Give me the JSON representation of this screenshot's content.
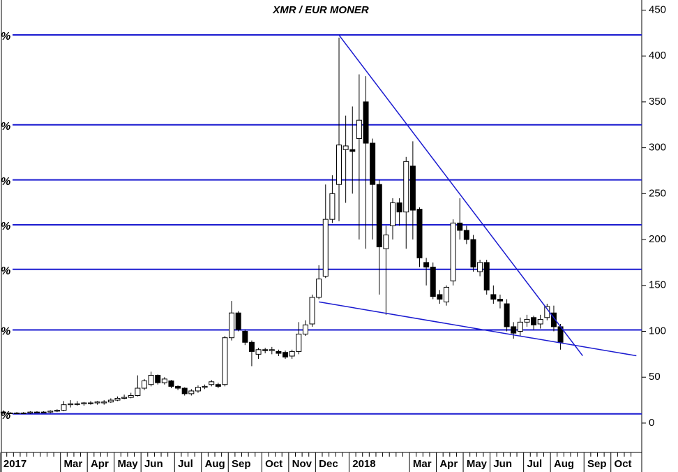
{
  "chart_data": {
    "type": "candlestick",
    "title": "XMR / EUR MONER",
    "categories": [
      "2017",
      null,
      null,
      null,
      null,
      null,
      null,
      null,
      null,
      "Mar",
      null,
      null,
      null,
      "Apr",
      null,
      null,
      null,
      "May",
      null,
      null,
      null,
      "Jun",
      null,
      null,
      null,
      null,
      "Jul",
      null,
      null,
      null,
      "Aug",
      null,
      null,
      null,
      "Sep",
      null,
      null,
      null,
      null,
      "Oct",
      null,
      null,
      null,
      "Nov",
      null,
      null,
      null,
      "Dec",
      null,
      null,
      null,
      null,
      "2018",
      null,
      null,
      null,
      null,
      null,
      null,
      null,
      null,
      "Mar",
      null,
      null,
      null,
      "Apr",
      null,
      null,
      null,
      "May",
      null,
      null,
      null,
      "Jun",
      null,
      null,
      null,
      null,
      "Jul",
      null,
      null,
      null,
      "Aug",
      null,
      null,
      null,
      null,
      "Sep",
      null,
      null,
      null,
      "Oct",
      null,
      null,
      null
    ],
    "open": [
      12,
      11,
      11,
      11,
      11,
      12,
      12,
      12,
      13,
      14,
      20,
      21,
      21,
      22,
      22,
      22,
      23,
      25,
      27,
      28,
      30,
      38,
      42,
      52,
      44,
      46,
      40,
      38,
      32,
      35,
      39,
      42,
      42,
      42,
      93,
      120,
      100,
      88,
      75,
      80,
      79,
      78,
      77,
      73,
      78,
      97,
      108,
      137,
      160,
      222,
      260,
      298,
      298,
      310,
      350,
      305,
      260,
      190,
      215,
      240,
      230,
      280,
      233,
      175,
      170,
      140,
      132,
      155,
      218,
      210,
      200,
      165,
      175,
      140,
      135,
      130,
      105,
      100,
      110,
      115,
      108,
      115,
      120,
      105,
      null,
      null,
      null,
      null,
      null,
      null,
      null,
      null,
      null,
      null,
      null
    ],
    "high": [
      14,
      12,
      12,
      12,
      13,
      13,
      13,
      14,
      15,
      24,
      25,
      24,
      23,
      24,
      24,
      25,
      27,
      29,
      31,
      33,
      52,
      48,
      56,
      53,
      50,
      47,
      41,
      39,
      37,
      41,
      42,
      47,
      44,
      95,
      133,
      122,
      102,
      90,
      82,
      82,
      83,
      80,
      79,
      80,
      110,
      112,
      140,
      172,
      260,
      270,
      420,
      335,
      345,
      380,
      378,
      310,
      265,
      215,
      245,
      245,
      290,
      307,
      235,
      180,
      175,
      145,
      150,
      222,
      245,
      215,
      205,
      178,
      178,
      150,
      140,
      135,
      110,
      115,
      118,
      117,
      118,
      130,
      128,
      108,
      null,
      null,
      null,
      null,
      null,
      null,
      null,
      null,
      null,
      null,
      null
    ],
    "low": [
      10,
      10,
      10,
      10,
      10,
      11,
      11,
      11,
      12,
      13,
      17,
      19,
      19,
      20,
      20,
      20,
      22,
      24,
      26,
      27,
      29,
      36,
      40,
      42,
      42,
      38,
      36,
      30,
      30,
      33,
      37,
      40,
      38,
      40,
      90,
      100,
      85,
      62,
      70,
      76,
      75,
      73,
      70,
      70,
      75,
      95,
      105,
      135,
      158,
      218,
      220,
      240,
      250,
      200,
      190,
      200,
      140,
      118,
      200,
      215,
      190,
      200,
      170,
      150,
      135,
      130,
      128,
      150,
      200,
      195,
      165,
      160,
      140,
      130,
      125,
      100,
      92,
      95,
      105,
      102,
      103,
      112,
      100,
      80,
      null,
      null,
      null,
      null,
      null,
      null,
      null,
      null,
      null,
      null,
      null
    ],
    "close": [
      11,
      11,
      11,
      11,
      12,
      12,
      12,
      13,
      14,
      20,
      21,
      21,
      22,
      22,
      23,
      23,
      25,
      27,
      28,
      30,
      38,
      46,
      52,
      44,
      48,
      40,
      38,
      32,
      35,
      39,
      40,
      45,
      40,
      93,
      120,
      102,
      88,
      78,
      80,
      79,
      80,
      76,
      72,
      78,
      97,
      107,
      137,
      157,
      222,
      250,
      303,
      302,
      296,
      330,
      305,
      260,
      192,
      205,
      240,
      230,
      285,
      232,
      180,
      170,
      138,
      135,
      148,
      218,
      210,
      200,
      170,
      175,
      145,
      135,
      133,
      105,
      98,
      110,
      113,
      107,
      113,
      127,
      105,
      88,
      null,
      null,
      null,
      null,
      null,
      null,
      null,
      null,
      null,
      null,
      null
    ],
    "up_color": "#ffffff",
    "down_color": "#000000",
    "xlim": [
      -0.3,
      95.1
    ],
    "ylim": [
      -32,
      461
    ],
    "yticks": [
      0,
      50,
      100,
      150,
      200,
      250,
      300,
      350,
      400,
      450
    ],
    "hlines": [
      423,
      325,
      265,
      216,
      167.5,
      101.5,
      10
    ],
    "hline_labels": [
      "%",
      "%",
      "%",
      "%",
      "%",
      "%",
      "%"
    ],
    "line_color": "#1a1ad0",
    "trendlines": [
      {
        "x": [
          50,
          86.3
        ],
        "y": [
          422.7,
          73.4
        ]
      },
      {
        "x": [
          47,
          94.3
        ],
        "y": [
          132,
          73.4
        ]
      }
    ]
  }
}
